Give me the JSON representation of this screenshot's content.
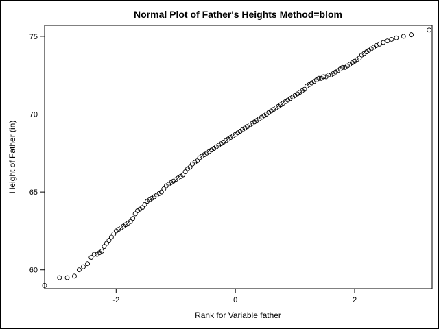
{
  "chart_data": {
    "type": "scatter",
    "title": "Normal Plot of Father's Heights  Method=blom",
    "xlabel": "Rank for Variable father",
    "ylabel": "Height of Father (in)",
    "xlim": [
      -3.2,
      3.3
    ],
    "ylim": [
      58.8,
      75.7
    ],
    "xticks": [
      -2,
      0,
      2
    ],
    "yticks": [
      60,
      65,
      70,
      75
    ],
    "xtick_labels": [
      "-2",
      "0",
      "2"
    ],
    "ytick_labels": [
      "60",
      "65",
      "70",
      "75"
    ],
    "marker": "open-circle",
    "marker_color": "#000000",
    "grid": false,
    "points_x": [
      -3.2,
      -2.95,
      -2.82,
      -2.7,
      -2.62,
      -2.55,
      -2.48,
      -2.42,
      -2.37,
      -2.32,
      -2.28,
      -2.24,
      -2.2,
      -2.16,
      -2.12,
      -2.08,
      -2.04,
      -2.0,
      -1.96,
      -1.92,
      -1.88,
      -1.84,
      -1.8,
      -1.76,
      -1.72,
      -1.68,
      -1.64,
      -1.6,
      -1.56,
      -1.52,
      -1.48,
      -1.44,
      -1.4,
      -1.36,
      -1.32,
      -1.28,
      -1.24,
      -1.2,
      -1.16,
      -1.12,
      -1.08,
      -1.04,
      -1.0,
      -0.96,
      -0.92,
      -0.88,
      -0.84,
      -0.8,
      -0.76,
      -0.72,
      -0.68,
      -0.64,
      -0.6,
      -0.56,
      -0.52,
      -0.48,
      -0.44,
      -0.4,
      -0.36,
      -0.32,
      -0.28,
      -0.24,
      -0.2,
      -0.16,
      -0.12,
      -0.08,
      -0.04,
      0.0,
      0.04,
      0.08,
      0.12,
      0.16,
      0.2,
      0.24,
      0.28,
      0.32,
      0.36,
      0.4,
      0.44,
      0.48,
      0.52,
      0.56,
      0.6,
      0.64,
      0.68,
      0.72,
      0.76,
      0.8,
      0.84,
      0.88,
      0.92,
      0.96,
      1.0,
      1.04,
      1.08,
      1.12,
      1.16,
      1.2,
      1.24,
      1.28,
      1.32,
      1.36,
      1.4,
      1.44,
      1.48,
      1.52,
      1.56,
      1.6,
      1.64,
      1.68,
      1.72,
      1.76,
      1.8,
      1.84,
      1.88,
      1.92,
      1.96,
      2.0,
      2.04,
      2.08,
      2.12,
      2.16,
      2.2,
      2.24,
      2.28,
      2.32,
      2.36,
      2.42,
      2.48,
      2.55,
      2.62,
      2.7,
      2.82,
      2.95,
      3.25
    ],
    "points_y": [
      59.0,
      59.5,
      59.5,
      59.6,
      60.0,
      60.2,
      60.4,
      60.8,
      61.0,
      61.0,
      61.1,
      61.2,
      61.5,
      61.7,
      61.9,
      62.1,
      62.3,
      62.5,
      62.6,
      62.7,
      62.8,
      62.9,
      63.0,
      63.1,
      63.3,
      63.6,
      63.8,
      63.9,
      64.0,
      64.2,
      64.4,
      64.5,
      64.6,
      64.7,
      64.8,
      64.9,
      65.0,
      65.2,
      65.4,
      65.5,
      65.6,
      65.7,
      65.8,
      65.9,
      66.0,
      66.1,
      66.3,
      66.5,
      66.6,
      66.8,
      66.9,
      67.0,
      67.2,
      67.3,
      67.4,
      67.5,
      67.6,
      67.7,
      67.8,
      67.9,
      68.0,
      68.1,
      68.2,
      68.3,
      68.4,
      68.5,
      68.6,
      68.7,
      68.8,
      68.9,
      69.0,
      69.1,
      69.2,
      69.3,
      69.4,
      69.5,
      69.6,
      69.7,
      69.8,
      69.9,
      70.0,
      70.1,
      70.2,
      70.3,
      70.4,
      70.5,
      70.6,
      70.7,
      70.8,
      70.9,
      71.0,
      71.1,
      71.2,
      71.3,
      71.4,
      71.5,
      71.6,
      71.8,
      71.9,
      72.0,
      72.1,
      72.2,
      72.3,
      72.3,
      72.4,
      72.4,
      72.5,
      72.5,
      72.6,
      72.7,
      72.8,
      72.9,
      73.0,
      73.0,
      73.1,
      73.2,
      73.3,
      73.4,
      73.5,
      73.6,
      73.8,
      73.9,
      74.0,
      74.1,
      74.2,
      74.3,
      74.4,
      74.5,
      74.6,
      74.7,
      74.8,
      74.9,
      75.0,
      75.1,
      75.4
    ],
    "note": ""
  }
}
